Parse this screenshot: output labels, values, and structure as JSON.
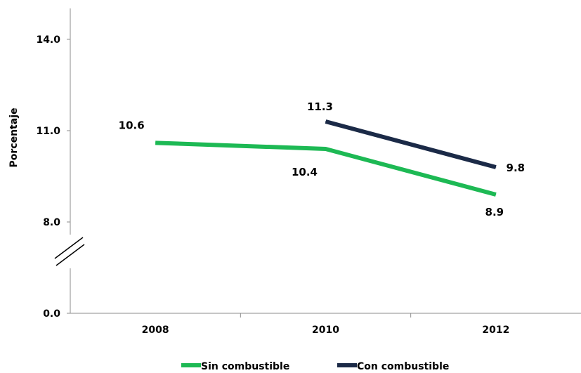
{
  "chart_data": {
    "type": "line",
    "title": "",
    "xlabel": "",
    "ylabel": "Porcentaje",
    "categories": [
      "2008",
      "2010",
      "2012"
    ],
    "y_tick_labels": [
      "0.0",
      "8.0",
      "11.0",
      "14.0"
    ],
    "axis_break": true,
    "grid": false,
    "legend_position": "bottom",
    "series": [
      {
        "name": "Sin combustible",
        "color": "#1db954",
        "values": [
          10.6,
          10.4,
          8.9
        ],
        "labels": [
          "10.6",
          "10.4",
          "8.9"
        ]
      },
      {
        "name": "Con combustible",
        "color": "#1b2a47",
        "values": [
          null,
          11.3,
          9.8
        ],
        "labels": [
          "",
          "11.3",
          "9.8"
        ]
      }
    ]
  }
}
